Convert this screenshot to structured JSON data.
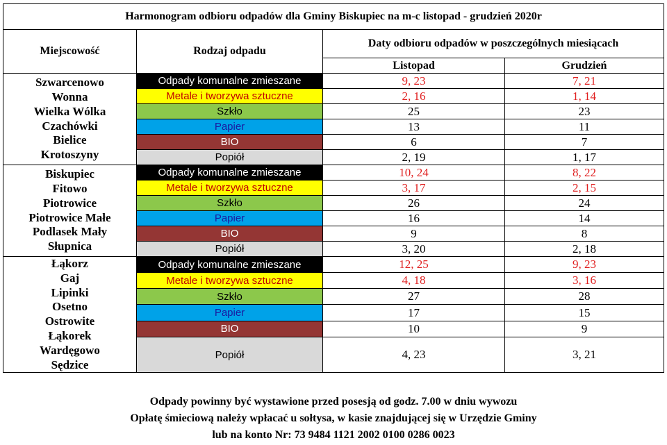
{
  "title": "Harmonogram odbioru odpadów dla Gminy Biskupiec na m-c listopad - grudzień 2020r",
  "headers": {
    "locality": "Miejscowość",
    "waste_type": "Rodzaj odpadu",
    "dates": "Daty odbioru odpadów w poszczególnych miesiącach",
    "month1": "Listopad",
    "month2": "Grudzień"
  },
  "waste_types": {
    "mixed": "Odpady komunalne zmieszane",
    "metal": "Metale i tworzywa sztuczne",
    "glass": "Szkło",
    "paper": "Papier",
    "bio": "BIO",
    "ash": "Popiół"
  },
  "colors": {
    "mixed": "#000000",
    "metal": "#ffff00",
    "glass": "#8cc84b",
    "paper": "#00a2e8",
    "bio": "#943634",
    "ash": "#d9d9d9",
    "red_dates": "#e02020"
  },
  "groups": [
    {
      "localities": [
        "Szwarcenowo",
        "Wonna",
        "Wielka Wólka",
        "Czachówki",
        "Bielice",
        "Krotoszyny"
      ],
      "rows": [
        {
          "listopad": "9, 23",
          "grudzien": "7, 21"
        },
        {
          "listopad": "2, 16",
          "grudzien": "1, 14"
        },
        {
          "listopad": "25",
          "grudzien": "23"
        },
        {
          "listopad": "13",
          "grudzien": "11"
        },
        {
          "listopad": "6",
          "grudzien": "7"
        },
        {
          "listopad": "2, 19",
          "grudzien": "1, 17"
        }
      ]
    },
    {
      "localities": [
        "Biskupiec",
        "Fitowo",
        "Piotrowice",
        "Piotrowice Małe",
        "Podlasek Mały",
        "Słupnica"
      ],
      "rows": [
        {
          "listopad": "10, 24",
          "grudzien": "8, 22"
        },
        {
          "listopad": "3, 17",
          "grudzien": "2, 15"
        },
        {
          "listopad": "26",
          "grudzien": "24"
        },
        {
          "listopad": "16",
          "grudzien": "14"
        },
        {
          "listopad": "9",
          "grudzien": "8"
        },
        {
          "listopad": "3, 20",
          "grudzien": "2, 18"
        }
      ]
    },
    {
      "localities": [
        "Łąkorz",
        "Gaj",
        "Lipinki",
        "Osetno",
        "Ostrowite",
        "Łąkorek",
        "Wardęgowo",
        "Sędzice"
      ],
      "rows": [
        {
          "listopad": "12, 25",
          "grudzien": "9, 23"
        },
        {
          "listopad": "4, 18",
          "grudzien": "3, 16"
        },
        {
          "listopad": "27",
          "grudzien": "28"
        },
        {
          "listopad": "17",
          "grudzien": "15"
        },
        {
          "listopad": "10",
          "grudzien": "9"
        },
        {
          "listopad": "4, 23",
          "grudzien": "3, 21"
        }
      ]
    }
  ],
  "footer": {
    "line1": "Odpady powinny być wystawione przed posesją od godz. 7.00 w dniu wywozu",
    "line2": "Opłatę śmieciową należy wpłacać u sołtysa, w kasie znajdującej się w Urzędzie Gminy",
    "line3": "lub na konto Nr: 73 9484 1121 2002 0100 0286 0023"
  }
}
